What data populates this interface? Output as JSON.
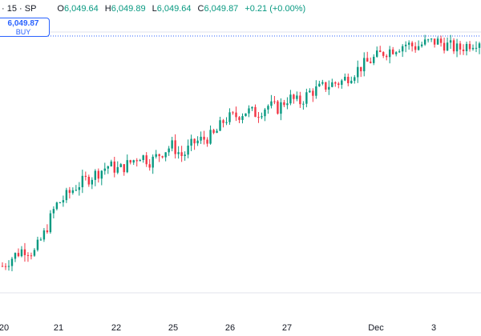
{
  "header": {
    "symbol": "· 15 · SP",
    "open_label": "O",
    "open": "6,049.64",
    "high_label": "H",
    "high": "6,049.89",
    "low_label": "L",
    "low": "6,049.64",
    "close_label": "C",
    "close": "6,049.87",
    "change": "+0.21 (+0.00%)"
  },
  "buy_box": {
    "price": "6,049.87",
    "label": "BUY"
  },
  "colors": {
    "up": "#089981",
    "down": "#f23645",
    "grid": "#e0e3eb",
    "price_line": "#2962ff"
  },
  "chart_data": {
    "type": "candlestick",
    "x_tick_labels": [
      "20",
      "21",
      "22",
      "25",
      "26",
      "27",
      "Dec",
      "3"
    ],
    "last_price": 6049.87,
    "trend_y": [
      5880,
      5887,
      5893,
      5890,
      5905,
      5925,
      5932,
      5940,
      5945,
      5950,
      5955,
      5952,
      5957,
      5963,
      5958,
      5965,
      5970,
      5962,
      5972,
      5975,
      5978,
      5990,
      5992,
      5996,
      5994,
      6000,
      5998,
      6006,
      6002,
      6010,
      6013,
      6016,
      6018,
      6024,
      6030,
      6035,
      6040,
      6043,
      6046,
      6044,
      6047,
      6048,
      6045,
      6042,
      6046,
      6049
    ]
  }
}
